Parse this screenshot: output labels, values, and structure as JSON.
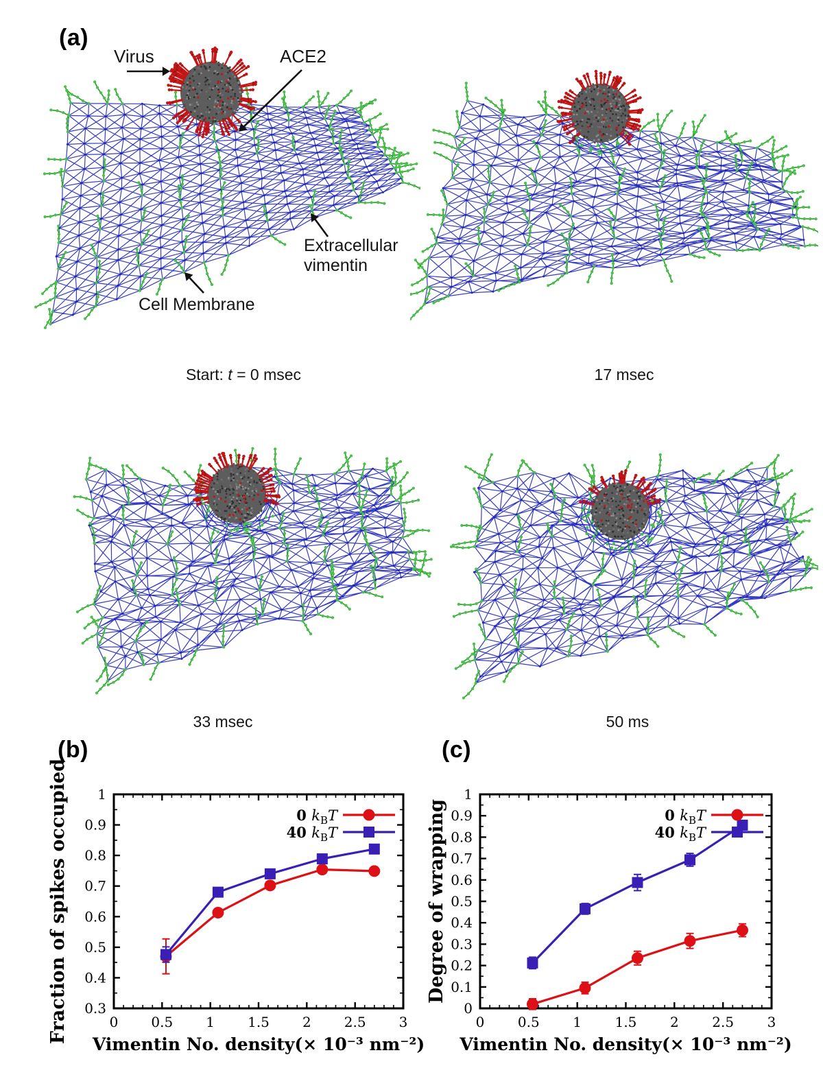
{
  "figure": {
    "panel_a": {
      "label": "(a)",
      "annotations": {
        "virus": "Virus",
        "ace2": "ACE2",
        "extracellular_vimentin": "Extracellular vimentin",
        "cell_membrane": "Cell Membrane"
      },
      "snapshots": [
        {
          "caption": "Start: t = 0 msec"
        },
        {
          "caption": "17 msec"
        },
        {
          "caption": "33 msec"
        },
        {
          "caption": "50 ms"
        }
      ],
      "colors": {
        "membrane": "#2a2fc2",
        "membrane_node": "#1f24a8",
        "vimentin": "#2e9e2e",
        "vimentin_bead": "#4cc04c",
        "virus_body": "#5d5d5d",
        "virus_spike": "#c41616"
      }
    }
  },
  "chart_data": [
    {
      "id": "b",
      "type": "line",
      "panel_label": "(b)",
      "title": "",
      "xlabel": "Vimentin No. density(× 10⁻³ nm⁻²)",
      "ylabel": "Fraction of spikes occupied",
      "xlim": [
        0,
        3
      ],
      "ylim": [
        0.3,
        1
      ],
      "xtick_values": [
        0,
        0.5,
        1,
        1.5,
        2,
        2.5,
        3
      ],
      "xtick_labels": [
        "0",
        "0.5",
        "1",
        "1.5",
        "2",
        "2.5",
        "3"
      ],
      "ytick_values": [
        0.3,
        0.4,
        0.5,
        0.6,
        0.7,
        0.8,
        0.9,
        1
      ],
      "ytick_labels": [
        "0.3",
        "0.4",
        "0.5",
        "0.6",
        "0.7",
        "0.8",
        "0.9",
        "1"
      ],
      "x_minor_step": 0.1,
      "y_minor_step": 0.05,
      "grid": false,
      "legend_position": "top-right",
      "x": [
        0.54,
        1.08,
        1.62,
        2.16,
        2.7
      ],
      "series": [
        {
          "name": "0 kBT",
          "color": "#dd1015",
          "marker": "circle",
          "values": [
            0.47,
            0.613,
            0.702,
            0.754,
            0.749
          ],
          "errors": [
            0.057,
            0.013,
            0.012,
            0.009,
            0.01
          ]
        },
        {
          "name": "40 kBT",
          "color": "#3a1fb4",
          "marker": "square",
          "values": [
            0.476,
            0.68,
            0.74,
            0.789,
            0.821
          ],
          "errors": [
            0.025,
            0.012,
            0.012,
            0.008,
            0.008
          ]
        }
      ]
    },
    {
      "id": "c",
      "type": "line",
      "panel_label": "(c)",
      "title": "",
      "xlabel": "Vimentin No. density(× 10⁻³ nm⁻²)",
      "ylabel": "Degree of wrapping",
      "xlim": [
        0,
        3
      ],
      "ylim": [
        0,
        1
      ],
      "xtick_values": [
        0,
        0.5,
        1,
        1.5,
        2,
        2.5,
        3
      ],
      "xtick_labels": [
        "0",
        "0.5",
        "1",
        "1.5",
        "2",
        "2.5",
        "3"
      ],
      "ytick_values": [
        0,
        0.1,
        0.2,
        0.3,
        0.4,
        0.5,
        0.6,
        0.7,
        0.8,
        0.9,
        1
      ],
      "ytick_labels": [
        "0",
        "0.1",
        "0.2",
        "0.3",
        "0.4",
        "0.5",
        "0.6",
        "0.7",
        "0.8",
        "0.9",
        "1"
      ],
      "x_minor_step": 0.1,
      "y_minor_step": 0.05,
      "grid": false,
      "legend_position": "top-right",
      "x": [
        0.54,
        1.08,
        1.62,
        2.16,
        2.7
      ],
      "series": [
        {
          "name": "0 kBT",
          "color": "#dd1015",
          "marker": "circle",
          "values": [
            0.02,
            0.095,
            0.235,
            0.315,
            0.365
          ],
          "errors": [
            0.025,
            0.027,
            0.032,
            0.035,
            0.03
          ]
        },
        {
          "name": "40 kBT",
          "color": "#3a1fb4",
          "marker": "square",
          "values": [
            0.212,
            0.465,
            0.588,
            0.694,
            0.856
          ],
          "errors": [
            0.027,
            0.025,
            0.038,
            0.03,
            0.022
          ]
        }
      ]
    }
  ]
}
